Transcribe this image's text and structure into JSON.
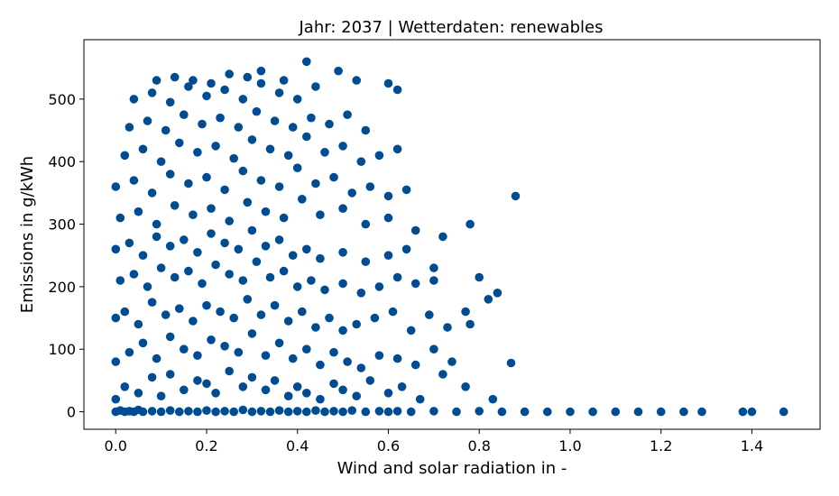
{
  "chart_data": {
    "type": "scatter",
    "title": "Jahr: 2037 | Wetterdaten: renewables",
    "xlabel": "Wind and solar radiation in -",
    "ylabel": "Emissions in g/kWh",
    "xlim": [
      -0.07,
      1.55
    ],
    "ylim": [
      -28,
      595
    ],
    "xticks": [
      0.0,
      0.2,
      0.4,
      0.6,
      0.8,
      1.0,
      1.2,
      1.4
    ],
    "xtick_labels": [
      "0.0",
      "0.2",
      "0.4",
      "0.6",
      "0.8",
      "1.0",
      "1.2",
      "1.4"
    ],
    "yticks": [
      0,
      100,
      200,
      300,
      400,
      500
    ],
    "ytick_labels": [
      "0",
      "100",
      "200",
      "300",
      "400",
      "500"
    ],
    "grid": false,
    "color": "#004c93",
    "series": [
      {
        "x": [
          0.0,
          0.01,
          0.02,
          0.03,
          0.04,
          0.05,
          0.06,
          0.08,
          0.1,
          0.12,
          0.14,
          0.16,
          0.18,
          0.2,
          0.22,
          0.24,
          0.26,
          0.28,
          0.3,
          0.32,
          0.34,
          0.36,
          0.38,
          0.4,
          0.42,
          0.44,
          0.46,
          0.48,
          0.5,
          0.52,
          0.55,
          0.58,
          0.6,
          0.62,
          0.65,
          0.7,
          0.75,
          0.8,
          0.85,
          0.9,
          0.95,
          1.0,
          1.05,
          1.1,
          1.15,
          1.2,
          1.25,
          1.29,
          1.38,
          1.4,
          1.47,
          0.0,
          0.02,
          0.05,
          0.08,
          0.1,
          0.12,
          0.15,
          0.18,
          0.2,
          0.22,
          0.25,
          0.28,
          0.3,
          0.33,
          0.35,
          0.38,
          0.4,
          0.42,
          0.45,
          0.48,
          0.5,
          0.53,
          0.56,
          0.6,
          0.63,
          0.67,
          0.72,
          0.77,
          0.83,
          0.87,
          0.0,
          0.03,
          0.06,
          0.09,
          0.12,
          0.15,
          0.18,
          0.21,
          0.24,
          0.27,
          0.3,
          0.33,
          0.36,
          0.39,
          0.42,
          0.45,
          0.48,
          0.51,
          0.54,
          0.58,
          0.62,
          0.66,
          0.7,
          0.74,
          0.78,
          0.0,
          0.02,
          0.05,
          0.08,
          0.11,
          0.14,
          0.17,
          0.2,
          0.23,
          0.26,
          0.29,
          0.32,
          0.35,
          0.38,
          0.41,
          0.44,
          0.47,
          0.5,
          0.53,
          0.57,
          0.61,
          0.65,
          0.69,
          0.73,
          0.77,
          0.82,
          0.84,
          0.01,
          0.04,
          0.07,
          0.1,
          0.13,
          0.16,
          0.19,
          0.22,
          0.25,
          0.28,
          0.31,
          0.34,
          0.37,
          0.4,
          0.43,
          0.46,
          0.5,
          0.54,
          0.58,
          0.62,
          0.66,
          0.7,
          0.8,
          0.0,
          0.03,
          0.06,
          0.09,
          0.12,
          0.15,
          0.18,
          0.21,
          0.24,
          0.27,
          0.3,
          0.33,
          0.36,
          0.39,
          0.42,
          0.45,
          0.5,
          0.55,
          0.6,
          0.64,
          0.7,
          0.01,
          0.05,
          0.09,
          0.13,
          0.17,
          0.21,
          0.25,
          0.29,
          0.33,
          0.37,
          0.41,
          0.45,
          0.5,
          0.55,
          0.6,
          0.66,
          0.72,
          0.78,
          0.0,
          0.04,
          0.08,
          0.12,
          0.16,
          0.2,
          0.24,
          0.28,
          0.32,
          0.36,
          0.4,
          0.44,
          0.48,
          0.52,
          0.56,
          0.6,
          0.64,
          0.02,
          0.06,
          0.1,
          0.14,
          0.18,
          0.22,
          0.26,
          0.3,
          0.34,
          0.38,
          0.42,
          0.46,
          0.5,
          0.54,
          0.58,
          0.62,
          0.88,
          0.03,
          0.07,
          0.11,
          0.15,
          0.19,
          0.23,
          0.27,
          0.31,
          0.35,
          0.39,
          0.43,
          0.47,
          0.51,
          0.55,
          0.04,
          0.08,
          0.12,
          0.16,
          0.2,
          0.24,
          0.28,
          0.32,
          0.36,
          0.4,
          0.44,
          0.49,
          0.53,
          0.6,
          0.62,
          0.09,
          0.13,
          0.17,
          0.21,
          0.25,
          0.29,
          0.32,
          0.37,
          0.42
        ],
        "y": [
          0,
          2,
          0,
          1,
          0,
          3,
          0,
          1,
          0,
          2,
          0,
          1,
          0,
          2,
          0,
          1,
          0,
          3,
          0,
          1,
          0,
          2,
          0,
          1,
          0,
          2,
          0,
          1,
          0,
          2,
          0,
          1,
          0,
          1,
          0,
          1,
          0,
          1,
          0,
          0,
          0,
          0,
          0,
          0,
          0,
          0,
          0,
          0,
          0,
          0,
          0,
          20,
          40,
          30,
          55,
          25,
          60,
          35,
          50,
          45,
          30,
          65,
          40,
          55,
          35,
          50,
          25,
          40,
          30,
          20,
          45,
          35,
          25,
          50,
          30,
          40,
          20,
          60,
          40,
          20,
          78,
          80,
          95,
          110,
          85,
          120,
          100,
          90,
          115,
          105,
          95,
          125,
          90,
          110,
          85,
          100,
          75,
          95,
          80,
          70,
          90,
          85,
          75,
          100,
          80,
          140,
          150,
          160,
          140,
          175,
          155,
          165,
          145,
          170,
          160,
          150,
          180,
          155,
          170,
          145,
          160,
          135,
          150,
          130,
          140,
          150,
          160,
          130,
          155,
          135,
          160,
          180,
          190,
          210,
          220,
          200,
          230,
          215,
          225,
          205,
          235,
          220,
          210,
          240,
          215,
          225,
          200,
          210,
          195,
          205,
          190,
          200,
          215,
          205,
          210,
          215,
          260,
          270,
          250,
          280,
          265,
          275,
          255,
          285,
          270,
          260,
          290,
          265,
          275,
          250,
          260,
          245,
          255,
          240,
          250,
          260,
          230,
          310,
          320,
          300,
          330,
          315,
          325,
          305,
          335,
          320,
          310,
          340,
          315,
          325,
          300,
          310,
          290,
          280,
          300,
          360,
          370,
          350,
          380,
          365,
          375,
          355,
          385,
          370,
          360,
          390,
          365,
          375,
          350,
          360,
          345,
          355,
          410,
          420,
          400,
          430,
          415,
          425,
          405,
          435,
          420,
          410,
          440,
          415,
          425,
          400,
          410,
          420,
          345,
          455,
          465,
          450,
          475,
          460,
          470,
          455,
          480,
          465,
          455,
          470,
          460,
          475,
          450,
          500,
          510,
          495,
          520,
          505,
          515,
          500,
          525,
          510,
          500,
          520,
          545,
          530,
          525,
          515,
          530,
          535,
          530,
          525,
          540,
          535,
          545,
          530,
          560
        ]
      }
    ]
  }
}
